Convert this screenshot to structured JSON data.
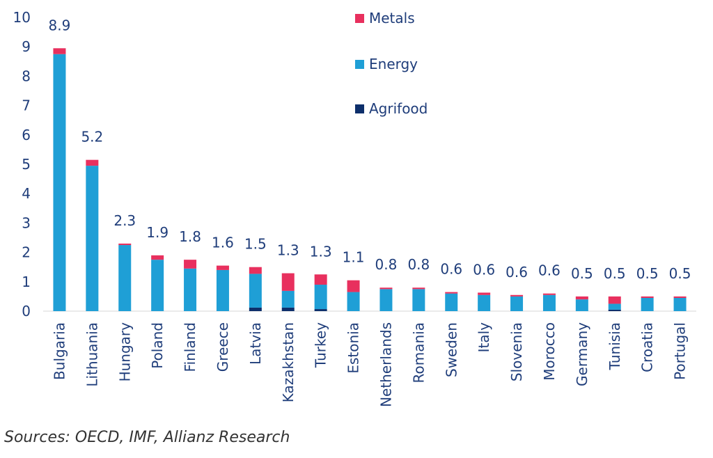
{
  "source_text": "Sources: OECD, IMF, Allianz Research",
  "chart_data": {
    "type": "bar",
    "stacked": true,
    "title": "",
    "xlabel": "",
    "ylabel": "",
    "ylim": [
      0,
      10
    ],
    "yticks": [
      0,
      1,
      2,
      3,
      4,
      5,
      6,
      7,
      8,
      9,
      10
    ],
    "grid": false,
    "legend_position": "top-center",
    "categories": [
      "Bulgaria",
      "Lithuania",
      "Hungary",
      "Poland",
      "Finland",
      "Greece",
      "Latvia",
      "Kazakhstan",
      "Turkey",
      "Estonia",
      "Netherlands",
      "Romania",
      "Sweden",
      "Italy",
      "Slovenia",
      "Morocco",
      "Germany",
      "Tunisia",
      "Croatia",
      "Portugal"
    ],
    "totals_labels": [
      "8.9",
      "5.2",
      "2.3",
      "1.9",
      "1.8",
      "1.6",
      "1.5",
      "1.3",
      "1.3",
      "1.1",
      "0.8",
      "0.8",
      "0.6",
      "0.6",
      "0.6",
      "0.6",
      "0.5",
      "0.5",
      "0.5",
      "0.5"
    ],
    "series": [
      {
        "name": "Agrifood",
        "color": "#0d2f6b",
        "values": [
          0,
          0,
          0,
          0,
          0,
          0,
          0.12,
          0.12,
          0.07,
          0,
          0,
          0,
          0,
          0,
          0,
          0,
          0,
          0.05,
          0,
          0
        ]
      },
      {
        "name": "Energy",
        "color": "#1f9fd6",
        "values": [
          8.75,
          4.95,
          2.25,
          1.75,
          1.45,
          1.4,
          1.15,
          0.57,
          0.83,
          0.65,
          0.75,
          0.75,
          0.6,
          0.55,
          0.5,
          0.55,
          0.4,
          0.2,
          0.45,
          0.45
        ]
      },
      {
        "name": "Metals",
        "color": "#e8305e",
        "values": [
          0.2,
          0.2,
          0.05,
          0.15,
          0.3,
          0.15,
          0.23,
          0.6,
          0.35,
          0.4,
          0.05,
          0.05,
          0.05,
          0.08,
          0.05,
          0.05,
          0.1,
          0.25,
          0.05,
          0.05
        ]
      }
    ],
    "legend_order": [
      "Metals",
      "Energy",
      "Agrifood"
    ]
  }
}
